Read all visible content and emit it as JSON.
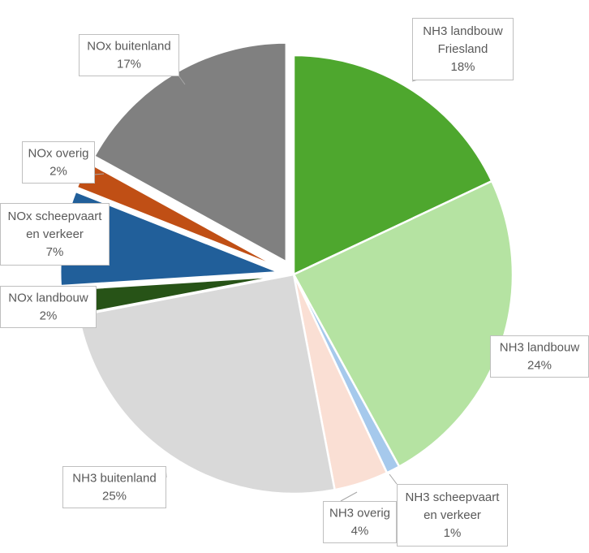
{
  "chart_data": {
    "type": "pie",
    "slices": [
      {
        "name": "NH3 landbouw Friesland",
        "value": 18,
        "label_lines": [
          "NH3 landbouw",
          "Friesland",
          "18%"
        ],
        "color": "#4EA72E"
      },
      {
        "name": "NH3 landbouw",
        "value": 24,
        "label_lines": [
          "NH3 landbouw",
          "24%"
        ],
        "color": "#B5E3A2"
      },
      {
        "name": "NH3 scheepvaart en verkeer",
        "value": 1,
        "label_lines": [
          "NH3 scheepvaart",
          "en verkeer",
          "1%"
        ],
        "color": "#A6C9EC"
      },
      {
        "name": "NH3 overig",
        "value": 4,
        "label_lines": [
          "NH3 overig",
          "4%"
        ],
        "color": "#FADFD4"
      },
      {
        "name": "NH3 buitenland",
        "value": 25,
        "label_lines": [
          "NH3 buitenland",
          "25%"
        ],
        "color": "#D9D9D9"
      },
      {
        "name": "NOx landbouw",
        "value": 2,
        "label_lines": [
          "NOx landbouw",
          "2%"
        ],
        "color": "#275317"
      },
      {
        "name": "NOx scheepvaart en verkeer",
        "value": 7,
        "label_lines": [
          "NOx scheepvaart",
          "en verkeer",
          "7%"
        ],
        "color": "#215F9A"
      },
      {
        "name": "NOx overig",
        "value": 2,
        "label_lines": [
          "NOx overig",
          "2%"
        ],
        "color": "#C04F15"
      },
      {
        "name": "NOx buitenland",
        "value": 17,
        "label_lines": [
          "NOx buitenland",
          "17%"
        ],
        "color": "#808080"
      }
    ],
    "start_angle": "12 o'clock",
    "direction": "clockwise",
    "legend": "none",
    "data_labels": "callouts"
  }
}
